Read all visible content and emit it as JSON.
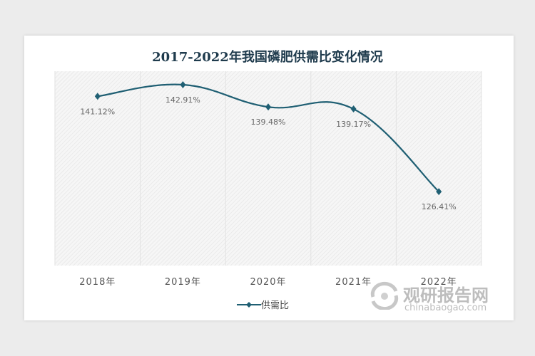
{
  "chart_data": {
    "type": "line",
    "title": "2017-2022年我国磷肥供需比变化情况",
    "categories": [
      "2018年",
      "2019年",
      "2020年",
      "2021年",
      "2022年"
    ],
    "series": [
      {
        "name": "供需比",
        "values": [
          141.12,
          142.91,
          139.48,
          139.17,
          126.41
        ],
        "labels": [
          "141.12%",
          "142.91%",
          "139.48%",
          "139.17%",
          "126.41%"
        ],
        "color": "#1f5f73"
      }
    ],
    "ylim": [
      115,
      145
    ],
    "grid": "vertical",
    "smooth": true,
    "legend": "bottom"
  },
  "watermark": {
    "name": "观研报告网",
    "site": "chinabaogao.com"
  }
}
